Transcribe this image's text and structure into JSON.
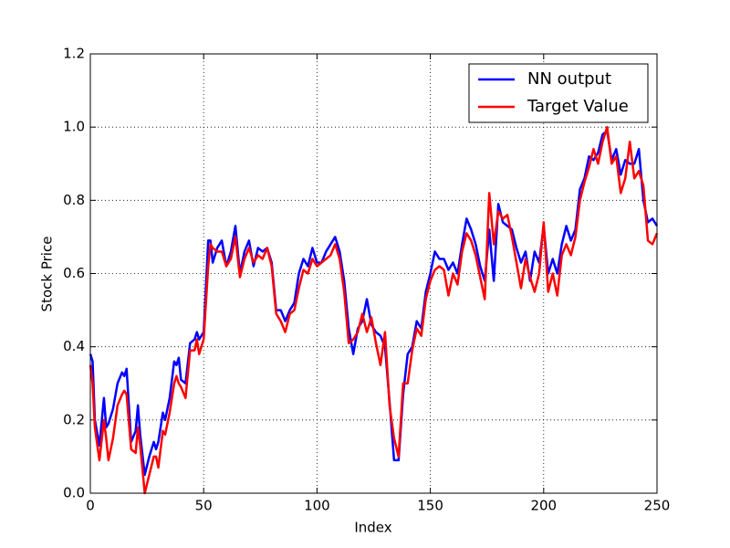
{
  "chart_data": {
    "type": "line",
    "xlabel": "Index",
    "ylabel": "Stock Price",
    "x": [
      0,
      1,
      2,
      4,
      6,
      7,
      8,
      10,
      12,
      14,
      15,
      16,
      18,
      20,
      21,
      22,
      24,
      26,
      28,
      29,
      30,
      32,
      33,
      35,
      37,
      38,
      39,
      40,
      42,
      44,
      46,
      47,
      48,
      50,
      52,
      53,
      54,
      56,
      58,
      60,
      62,
      64,
      66,
      68,
      70,
      72,
      74,
      76,
      78,
      80,
      82,
      84,
      86,
      88,
      90,
      92,
      94,
      96,
      98,
      100,
      102,
      104,
      106,
      108,
      110,
      112,
      114,
      116,
      118,
      120,
      122,
      124,
      126,
      128,
      130,
      132,
      134,
      136,
      138,
      140,
      142,
      144,
      146,
      148,
      150,
      152,
      154,
      156,
      158,
      160,
      162,
      164,
      166,
      168,
      170,
      172,
      174,
      176,
      178,
      180,
      182,
      184,
      186,
      188,
      190,
      192,
      194,
      196,
      198,
      200,
      202,
      204,
      206,
      208,
      210,
      212,
      214,
      216,
      218,
      220,
      222,
      224,
      226,
      228,
      230,
      232,
      234,
      236,
      238,
      240,
      242,
      244,
      246,
      248,
      250
    ],
    "series": [
      {
        "name": "NN output",
        "color": "#0000ff",
        "values": [
          0.38,
          0.36,
          0.2,
          0.13,
          0.26,
          0.18,
          0.19,
          0.23,
          0.3,
          0.33,
          0.32,
          0.34,
          0.14,
          0.17,
          0.24,
          0.16,
          0.05,
          0.1,
          0.14,
          0.12,
          0.14,
          0.22,
          0.2,
          0.26,
          0.36,
          0.35,
          0.37,
          0.31,
          0.3,
          0.41,
          0.42,
          0.44,
          0.42,
          0.44,
          0.69,
          0.69,
          0.63,
          0.67,
          0.69,
          0.62,
          0.66,
          0.73,
          0.6,
          0.66,
          0.69,
          0.62,
          0.67,
          0.66,
          0.67,
          0.63,
          0.5,
          0.5,
          0.47,
          0.5,
          0.52,
          0.6,
          0.64,
          0.62,
          0.67,
          0.63,
          0.63,
          0.66,
          0.68,
          0.7,
          0.66,
          0.58,
          0.45,
          0.38,
          0.45,
          0.47,
          0.53,
          0.46,
          0.44,
          0.43,
          0.4,
          0.25,
          0.09,
          0.09,
          0.27,
          0.38,
          0.4,
          0.47,
          0.45,
          0.55,
          0.6,
          0.66,
          0.64,
          0.64,
          0.61,
          0.63,
          0.6,
          0.68,
          0.75,
          0.72,
          0.68,
          0.62,
          0.58,
          0.72,
          0.58,
          0.79,
          0.74,
          0.73,
          0.72,
          0.67,
          0.63,
          0.66,
          0.58,
          0.66,
          0.63,
          0.73,
          0.6,
          0.64,
          0.6,
          0.68,
          0.73,
          0.69,
          0.72,
          0.83,
          0.86,
          0.92,
          0.91,
          0.93,
          0.98,
          0.99,
          0.91,
          0.94,
          0.87,
          0.91,
          0.9,
          0.9,
          0.94,
          0.8,
          0.74,
          0.75,
          0.73
        ]
      },
      {
        "name": "Target Value",
        "color": "#ff0000",
        "values": [
          0.35,
          0.3,
          0.18,
          0.09,
          0.2,
          0.15,
          0.09,
          0.15,
          0.24,
          0.27,
          0.28,
          0.27,
          0.12,
          0.11,
          0.18,
          0.13,
          0.0,
          0.05,
          0.1,
          0.1,
          0.07,
          0.17,
          0.16,
          0.22,
          0.3,
          0.32,
          0.3,
          0.29,
          0.26,
          0.39,
          0.39,
          0.42,
          0.38,
          0.42,
          0.62,
          0.68,
          0.67,
          0.66,
          0.66,
          0.62,
          0.64,
          0.7,
          0.59,
          0.64,
          0.67,
          0.63,
          0.65,
          0.64,
          0.67,
          0.62,
          0.49,
          0.47,
          0.44,
          0.49,
          0.5,
          0.56,
          0.61,
          0.6,
          0.64,
          0.62,
          0.63,
          0.64,
          0.65,
          0.68,
          0.64,
          0.55,
          0.41,
          0.42,
          0.44,
          0.49,
          0.44,
          0.48,
          0.41,
          0.35,
          0.44,
          0.24,
          0.15,
          0.1,
          0.3,
          0.3,
          0.39,
          0.45,
          0.43,
          0.53,
          0.58,
          0.61,
          0.62,
          0.61,
          0.54,
          0.6,
          0.57,
          0.66,
          0.71,
          0.69,
          0.65,
          0.59,
          0.53,
          0.82,
          0.68,
          0.77,
          0.75,
          0.76,
          0.7,
          0.63,
          0.56,
          0.64,
          0.59,
          0.55,
          0.6,
          0.74,
          0.55,
          0.6,
          0.54,
          0.65,
          0.68,
          0.65,
          0.7,
          0.8,
          0.85,
          0.89,
          0.94,
          0.9,
          0.96,
          1.0,
          0.9,
          0.92,
          0.82,
          0.86,
          0.96,
          0.86,
          0.88,
          0.84,
          0.69,
          0.68,
          0.71
        ]
      }
    ],
    "xlim": [
      0,
      250
    ],
    "xticks": [
      0,
      50,
      100,
      150,
      200,
      250
    ],
    "ylim": [
      0,
      1.2
    ],
    "yticks": [
      {
        "value": 0,
        "label": "0.0"
      },
      {
        "value": 0.2,
        "label": "0.2"
      },
      {
        "value": 0.4,
        "label": "0.4"
      },
      {
        "value": 0.6,
        "label": "0.6"
      },
      {
        "value": 0.8,
        "label": "0.8"
      },
      {
        "value": 1,
        "label": "1.0"
      },
      {
        "value": 1.2,
        "label": "1.2"
      }
    ],
    "grid": true,
    "legend": "upper right"
  }
}
